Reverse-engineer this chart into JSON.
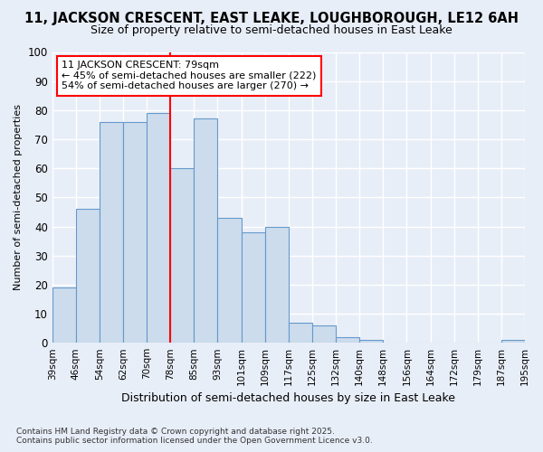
{
  "title1": "11, JACKSON CRESCENT, EAST LEAKE, LOUGHBOROUGH, LE12 6AH",
  "title2": "Size of property relative to semi-detached houses in East Leake",
  "xlabel": "Distribution of semi-detached houses by size in East Leake",
  "ylabel": "Number of semi-detached properties",
  "categories": [
    "39sqm",
    "46sqm",
    "54sqm",
    "62sqm",
    "70sqm",
    "78sqm",
    "85sqm",
    "93sqm",
    "101sqm",
    "109sqm",
    "117sqm",
    "125sqm",
    "132sqm",
    "140sqm",
    "148sqm",
    "156sqm",
    "164sqm",
    "172sqm",
    "179sqm",
    "187sqm",
    "195sqm"
  ],
  "bar_heights": [
    19,
    46,
    76,
    76,
    79,
    60,
    77,
    43,
    38,
    40,
    7,
    6,
    2,
    1,
    0,
    0,
    0,
    0,
    0,
    1
  ],
  "bar_color": "#ccdcec",
  "bar_edge_color": "#6699cc",
  "vline_x": 5,
  "vline_color": "red",
  "annotation_text": "11 JACKSON CRESCENT: 79sqm\n← 45% of semi-detached houses are smaller (222)\n54% of semi-detached houses are larger (270) →",
  "ylim": [
    0,
    100
  ],
  "yticks": [
    0,
    10,
    20,
    30,
    40,
    50,
    60,
    70,
    80,
    90,
    100
  ],
  "footer1": "Contains HM Land Registry data © Crown copyright and database right 2025.",
  "footer2": "Contains public sector information licensed under the Open Government Licence v3.0.",
  "bg_color": "#e8eef8",
  "plot_bg_color": "#e8eef8"
}
